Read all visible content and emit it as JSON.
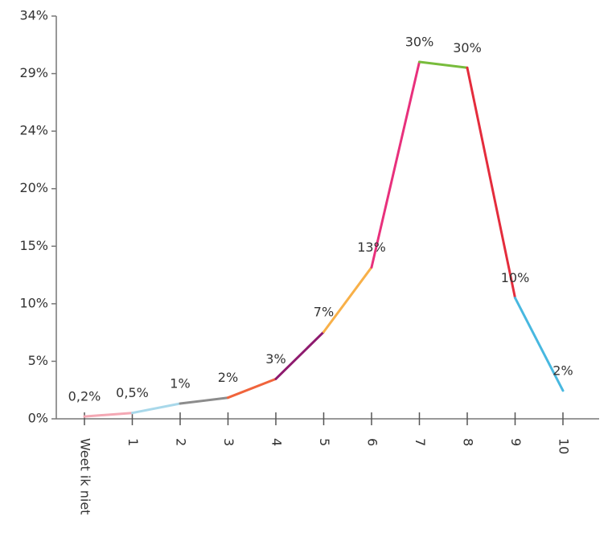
{
  "chart_data": {
    "type": "line",
    "categories": [
      "Weet ik niet",
      "1",
      "2",
      "3",
      "4",
      "5",
      "6",
      "7",
      "8",
      "9",
      "10"
    ],
    "values": [
      0.2,
      0.5,
      1.3,
      1.8,
      3.4,
      7.4,
      12.9,
      30.4,
      29.9,
      10.3,
      2.4
    ],
    "value_labels": [
      "0,2%",
      "0,5%",
      "1%",
      "2%",
      "3%",
      "7%",
      "13%",
      "30%",
      "30%",
      "10%",
      "2%"
    ],
    "segment_colors": [
      "#f4a8b4",
      "#a8d8ea",
      "#8c8c8c",
      "#f0643c",
      "#8e1a6e",
      "#f8b048",
      "#e8307c",
      "#78bc3c",
      "#e42c3c",
      "#48b8e0"
    ],
    "ylim": [
      0,
      34.3
    ],
    "yticks": [
      {
        "value": 0,
        "label": "0%"
      },
      {
        "value": 4.9,
        "label": "5%"
      },
      {
        "value": 9.8,
        "label": "10%"
      },
      {
        "value": 14.7,
        "label": "15%"
      },
      {
        "value": 19.6,
        "label": "20%"
      },
      {
        "value": 24.5,
        "label": "24%"
      },
      {
        "value": 29.4,
        "label": "29%"
      },
      {
        "value": 34.3,
        "label": "34%"
      }
    ]
  }
}
